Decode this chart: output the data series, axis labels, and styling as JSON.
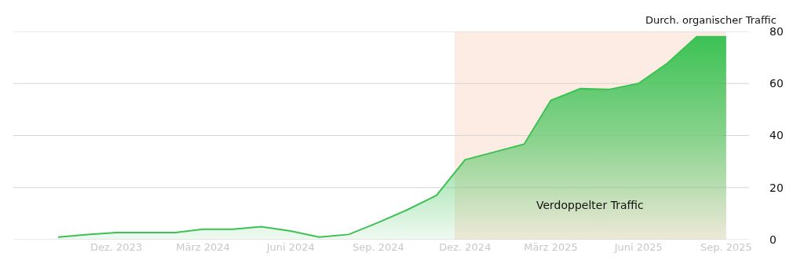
{
  "chart_data": {
    "type": "area",
    "ylabel": "Durch. organischer Traffic",
    "x": [
      "2023-10",
      "2023-11",
      "2023-12",
      "2024-01",
      "2024-02",
      "2024-03",
      "2024-04",
      "2024-05",
      "2024-06",
      "2024-07",
      "2024-08",
      "2024-09",
      "2024-10",
      "2024-11",
      "2024-12",
      "2025-01",
      "2025-02",
      "2025-03",
      "2025-04",
      "2025-05",
      "2025-06",
      "2025-07",
      "2025-08",
      "2025-09"
    ],
    "series": [
      {
        "color": "#3cc254",
        "values": [
          1,
          2,
          2.7,
          2.7,
          2.7,
          4,
          4,
          5,
          3.3,
          1,
          2,
          6.6,
          11.4,
          17,
          30.7,
          33.7,
          36.7,
          53.5,
          58,
          57.7,
          60,
          67.7,
          78,
          78
        ]
      }
    ],
    "xlim": [
      "2023-08-15",
      "2025-09-25"
    ],
    "xticks": [
      {
        "value": "2023-12-01",
        "label": "Dez. 2023"
      },
      {
        "value": "2024-03-01",
        "label": "März 2024"
      },
      {
        "value": "2024-06-01",
        "label": "Juni 2024"
      },
      {
        "value": "2024-09-01",
        "label": "Sep. 2024"
      },
      {
        "value": "2024-12-01",
        "label": "Dez. 2024"
      },
      {
        "value": "2025-03-01",
        "label": "März 2025"
      },
      {
        "value": "2025-06-01",
        "label": "Juni 2025"
      },
      {
        "value": "2025-09-01",
        "label": "Sep. 2025"
      }
    ],
    "ylim": [
      0,
      80
    ],
    "yticks": [
      0,
      20,
      40,
      60,
      80
    ],
    "bands": [
      {
        "axis": "x",
        "from": "2024-11-20",
        "to": "2025-09-01",
        "label": "Verdoppelter Traffic",
        "color": "#fdece3"
      }
    ],
    "grid": "y",
    "marker": "none",
    "line_style": "solid"
  }
}
